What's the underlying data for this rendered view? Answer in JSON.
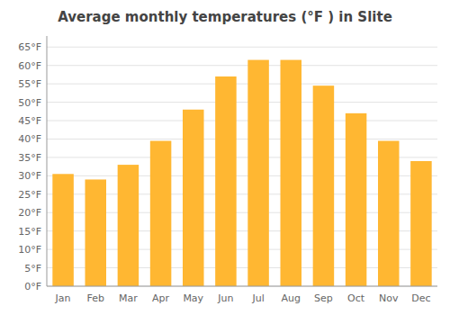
{
  "chart_data": {
    "type": "bar",
    "title": "Average monthly temperatures (°F ) in Slite",
    "categories": [
      "Jan",
      "Feb",
      "Mar",
      "Apr",
      "May",
      "Jun",
      "Jul",
      "Aug",
      "Sep",
      "Oct",
      "Nov",
      "Dec"
    ],
    "values": [
      30.5,
      29.0,
      33.0,
      39.5,
      48.0,
      57.0,
      61.5,
      61.5,
      54.5,
      47.0,
      39.5,
      34.0
    ],
    "color": "#FFB732",
    "ylim": [
      0,
      68
    ],
    "yticks": [
      {
        "value": 0,
        "label": "0°F"
      },
      {
        "value": 5,
        "label": "5°F"
      },
      {
        "value": 10,
        "label": "10°F"
      },
      {
        "value": 15,
        "label": "15°F"
      },
      {
        "value": 20,
        "label": "20°F"
      },
      {
        "value": 25,
        "label": "25°F"
      },
      {
        "value": 30,
        "label": "30°F"
      },
      {
        "value": 35,
        "label": "35°F"
      },
      {
        "value": 40,
        "label": "40°F"
      },
      {
        "value": 45,
        "label": "45°F"
      },
      {
        "value": 50,
        "label": "50°F"
      },
      {
        "value": 55,
        "label": "55°F"
      },
      {
        "value": 60,
        "label": "60°F"
      },
      {
        "value": 65,
        "label": "65°F"
      }
    ],
    "grid": true
  }
}
